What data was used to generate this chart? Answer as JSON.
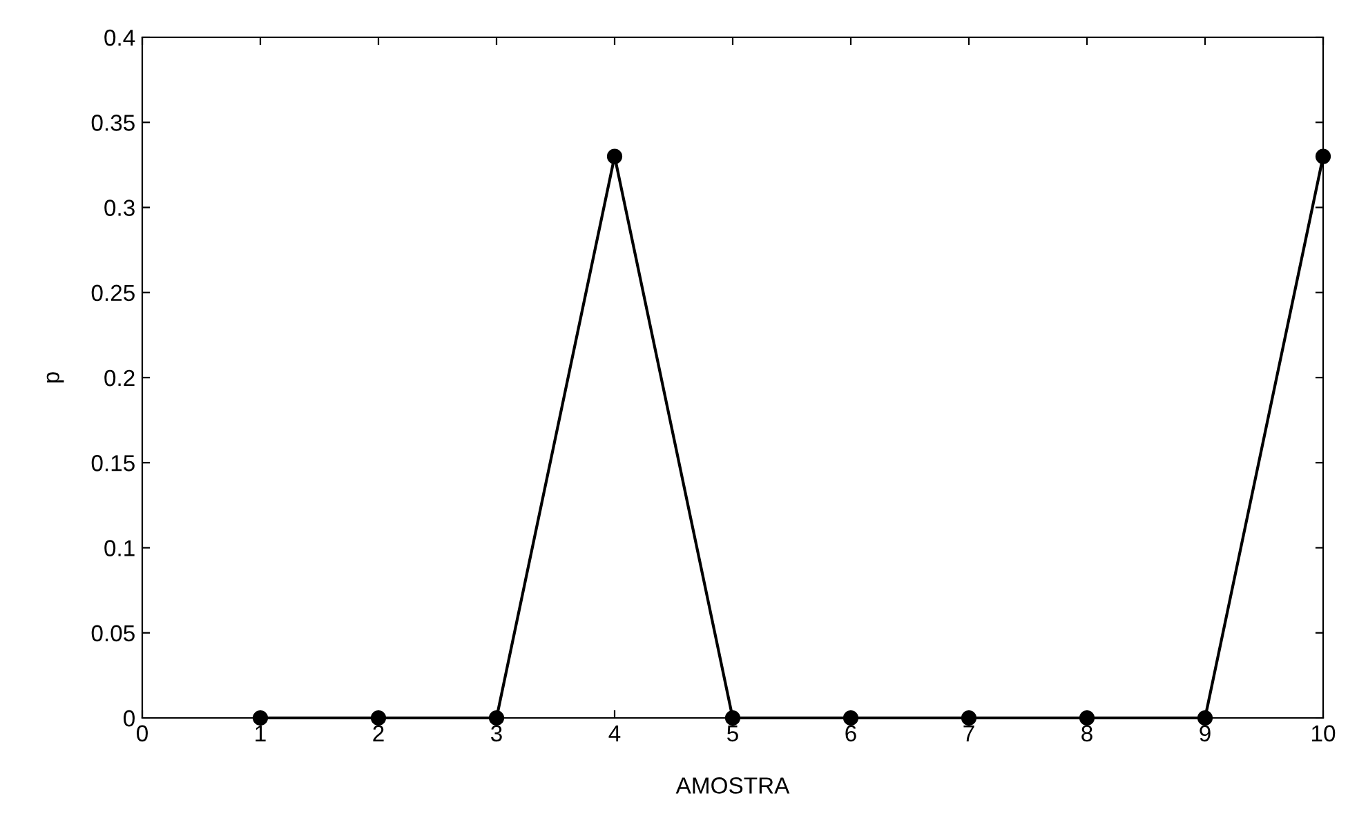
{
  "chart_data": {
    "type": "line",
    "xlabel": "AMOSTRA",
    "ylabel": "p",
    "x": [
      1,
      2,
      3,
      4,
      5,
      6,
      7,
      8,
      9,
      10
    ],
    "series": [
      {
        "color": "#000000",
        "values": [
          0,
          0,
          0,
          0.33,
          0,
          0,
          0,
          0,
          0,
          0.33
        ]
      }
    ],
    "xlim": [
      0,
      10
    ],
    "xticks": [
      0,
      1,
      2,
      3,
      4,
      5,
      6,
      7,
      8,
      9,
      10
    ],
    "ylim": [
      0,
      0.4
    ],
    "yticks": [
      0,
      0.05,
      0.1,
      0.15,
      0.2,
      0.25,
      0.3,
      0.35,
      0.4
    ],
    "marker": "circle",
    "line_style": "solid",
    "grid": false,
    "legend": false
  }
}
